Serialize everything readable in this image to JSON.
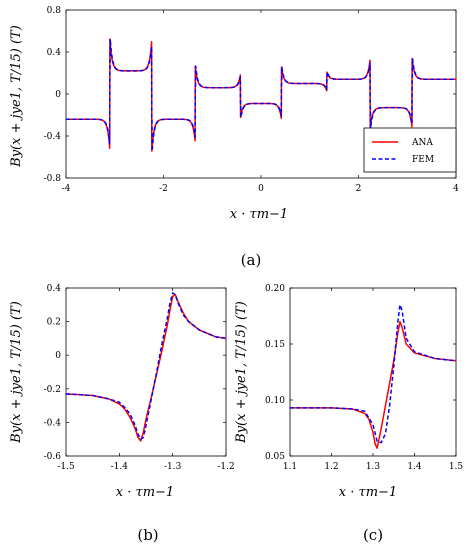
{
  "colors": {
    "ana": "#ff0000",
    "fem": "#0000ff",
    "axis": "#000000"
  },
  "chart_data": [
    {
      "type": "line",
      "panel": "a",
      "caption": "(a)",
      "xlabel": "x · τm−1",
      "ylabel": "By(x + jye1, T/15) (T)",
      "xlim": [
        -4,
        4
      ],
      "ylim": [
        -0.8,
        0.8
      ],
      "xticks": [
        "-4",
        "-2",
        "0",
        "2",
        "4"
      ],
      "yticks": [
        "-0.8",
        "-0.4",
        "0",
        "0.4",
        "0.8"
      ],
      "legend": {
        "placement": "bottom-right",
        "entries": [
          "ANA",
          "FEM"
        ]
      },
      "breaks": [
        -3.9,
        -3.1,
        -2.24,
        -1.35,
        -0.42,
        0.42,
        1.35,
        2.24,
        3.1,
        3.9
      ],
      "levels": [
        -0.24,
        0.22,
        -0.24,
        0.06,
        -0.09,
        0.1,
        0.14,
        -0.13,
        0.14
      ],
      "series": [
        {
          "name": "ANA",
          "style": "solid"
        },
        {
          "name": "FEM",
          "style": "dashed"
        }
      ]
    },
    {
      "type": "line",
      "panel": "b",
      "caption": "(b)",
      "xlabel": "x · τm−1",
      "ylabel": "By(x + jye1, T/15) (T)",
      "xlim": [
        -1.5,
        -1.2
      ],
      "ylim": [
        -0.6,
        0.4
      ],
      "xticks": [
        "-1.5",
        "-1.4",
        "-1.3",
        "-1.2"
      ],
      "yticks": [
        "-0.6",
        "-0.4",
        "-0.2",
        "0",
        "0.2",
        "0.4"
      ],
      "series": [
        {
          "name": "ANA",
          "style": "solid",
          "x": [
            -1.5,
            -1.45,
            -1.42,
            -1.4,
            -1.39,
            -1.38,
            -1.37,
            -1.365,
            -1.36,
            -1.355,
            -1.35,
            -1.34,
            -1.33,
            -1.32,
            -1.31,
            -1.305,
            -1.3,
            -1.295,
            -1.29,
            -1.28,
            -1.27,
            -1.25,
            -1.22,
            -1.2
          ],
          "y": [
            -0.23,
            -0.24,
            -0.26,
            -0.29,
            -0.32,
            -0.37,
            -0.44,
            -0.49,
            -0.51,
            -0.46,
            -0.38,
            -0.25,
            -0.11,
            0.03,
            0.18,
            0.27,
            0.35,
            0.36,
            0.32,
            0.25,
            0.2,
            0.15,
            0.11,
            0.1
          ]
        },
        {
          "name": "FEM",
          "style": "dashed",
          "x": [
            -1.5,
            -1.45,
            -1.42,
            -1.4,
            -1.39,
            -1.38,
            -1.37,
            -1.365,
            -1.36,
            -1.355,
            -1.35,
            -1.34,
            -1.33,
            -1.32,
            -1.31,
            -1.305,
            -1.3,
            -1.295,
            -1.29,
            -1.28,
            -1.27,
            -1.25,
            -1.22,
            -1.2
          ],
          "y": [
            -0.23,
            -0.24,
            -0.26,
            -0.28,
            -0.31,
            -0.35,
            -0.42,
            -0.47,
            -0.5,
            -0.49,
            -0.42,
            -0.26,
            -0.1,
            0.07,
            0.22,
            0.31,
            0.37,
            0.36,
            0.31,
            0.24,
            0.2,
            0.15,
            0.11,
            0.1
          ]
        }
      ]
    },
    {
      "type": "line",
      "panel": "c",
      "caption": "(c)",
      "xlabel": "x · τm−1",
      "ylabel": "By(x + jye1, T/15) (T)",
      "xlim": [
        1.1,
        1.5
      ],
      "ylim": [
        0.05,
        0.2
      ],
      "xticks": [
        "1.1",
        "1.2",
        "1.3",
        "1.4",
        "1.5"
      ],
      "yticks": [
        "0.05",
        "0.10",
        "0.15",
        "0.20"
      ],
      "series": [
        {
          "name": "ANA",
          "style": "solid",
          "x": [
            1.1,
            1.2,
            1.25,
            1.28,
            1.29,
            1.3,
            1.305,
            1.31,
            1.32,
            1.33,
            1.34,
            1.35,
            1.36,
            1.365,
            1.37,
            1.38,
            1.4,
            1.45,
            1.5
          ],
          "y": [
            0.093,
            0.093,
            0.092,
            0.088,
            0.083,
            0.071,
            0.061,
            0.057,
            0.075,
            0.095,
            0.115,
            0.135,
            0.16,
            0.17,
            0.165,
            0.15,
            0.142,
            0.137,
            0.135
          ]
        },
        {
          "name": "FEM",
          "style": "dashed",
          "x": [
            1.1,
            1.2,
            1.25,
            1.28,
            1.3,
            1.31,
            1.32,
            1.33,
            1.34,
            1.35,
            1.36,
            1.365,
            1.37,
            1.38,
            1.4,
            1.45,
            1.5
          ],
          "y": [
            0.093,
            0.093,
            0.092,
            0.09,
            0.078,
            0.063,
            0.062,
            0.07,
            0.095,
            0.13,
            0.17,
            0.185,
            0.18,
            0.155,
            0.143,
            0.137,
            0.135
          ]
        }
      ]
    }
  ]
}
